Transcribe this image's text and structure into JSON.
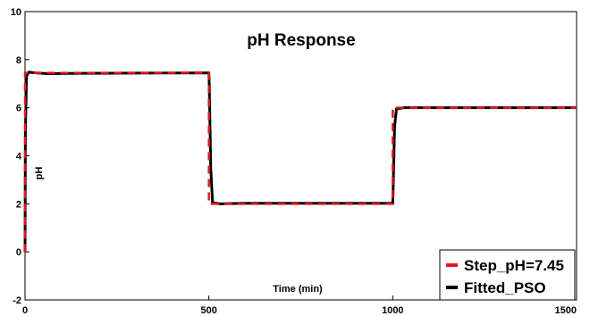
{
  "chart_data": {
    "type": "line",
    "title": "pH Response",
    "xlabel": "Time (min)",
    "ylabel": "pH",
    "xlim": [
      0,
      1500
    ],
    "ylim": [
      -2,
      10
    ],
    "xticks": [
      0,
      500,
      1000,
      1500
    ],
    "yticks": [
      -2,
      0,
      2,
      4,
      6,
      8,
      10
    ],
    "xtick_labels": [
      "0",
      "500",
      "1000",
      "1500"
    ],
    "ytick_labels": [
      "-2",
      "0",
      "2",
      "4",
      "6",
      "8",
      "10"
    ],
    "grid": false,
    "legend_position": "bottom-right",
    "series": [
      {
        "name": "Step_pH=7.45",
        "color": "#e8141c",
        "style": "dashed",
        "x": [
          0,
          0,
          500,
          500,
          1000,
          1000,
          1500
        ],
        "y": [
          0,
          7.45,
          7.45,
          2.0,
          2.0,
          6.0,
          6.0
        ]
      },
      {
        "name": "Fitted_PSO",
        "color": "#000000",
        "style": "solid",
        "x": [
          0,
          1,
          4,
          10,
          30,
          60,
          150,
          300,
          500,
          501,
          505,
          510,
          530,
          600,
          800,
          1000,
          1001,
          1005,
          1010,
          1030,
          1200,
          1500
        ],
        "y": [
          0,
          5.0,
          7.3,
          7.48,
          7.45,
          7.42,
          7.43,
          7.44,
          7.45,
          7.0,
          3.5,
          2.05,
          2.0,
          2.02,
          2.02,
          2.02,
          2.5,
          5.2,
          5.95,
          6.0,
          6.0,
          6.0
        ]
      }
    ]
  }
}
